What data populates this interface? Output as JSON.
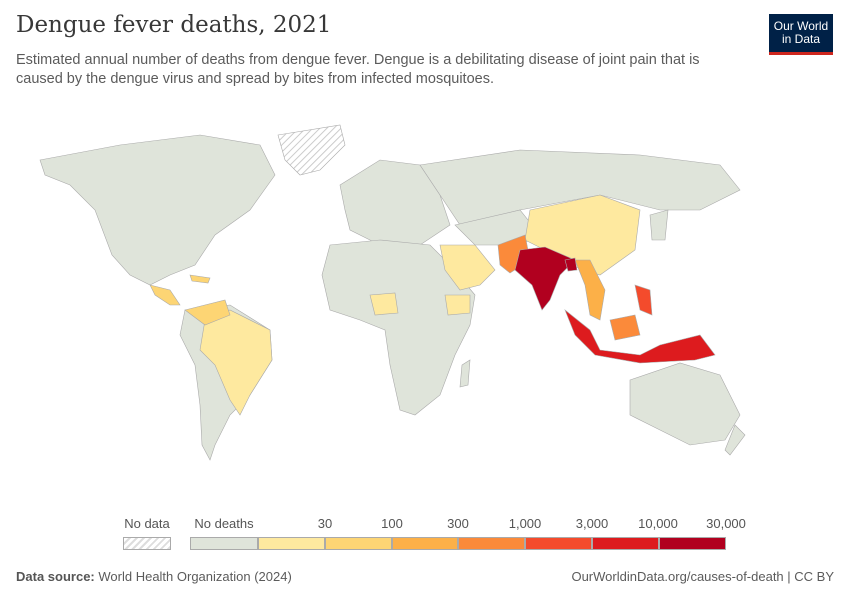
{
  "title": "Dengue fever deaths, 2021",
  "subtitle": "Estimated annual number of deaths from dengue fever. Dengue is a debilitating disease of joint pain that is caused by the dengue virus and spread by bites from infected mosquitoes.",
  "logo": "Our World in Data",
  "legend": {
    "no_data": "No data",
    "bins": [
      {
        "label": "No deaths",
        "color": "#dfe4da"
      },
      {
        "label": "30",
        "color": "#fee99f"
      },
      {
        "label": "100",
        "color": "#fdd574"
      },
      {
        "label": "300",
        "color": "#fcb048"
      },
      {
        "label": "1,000",
        "color": "#fb8a3a"
      },
      {
        "label": "3,000",
        "color": "#f44b2c"
      },
      {
        "label": "10,000",
        "color": "#dd1b1e"
      },
      {
        "label": "30,000",
        "color": "#b1001f"
      }
    ]
  },
  "footer": {
    "source_label": "Data source:",
    "source": "World Health Organization (2024)",
    "url": "OurWorldinData.org/causes-of-death | CC BY"
  }
}
